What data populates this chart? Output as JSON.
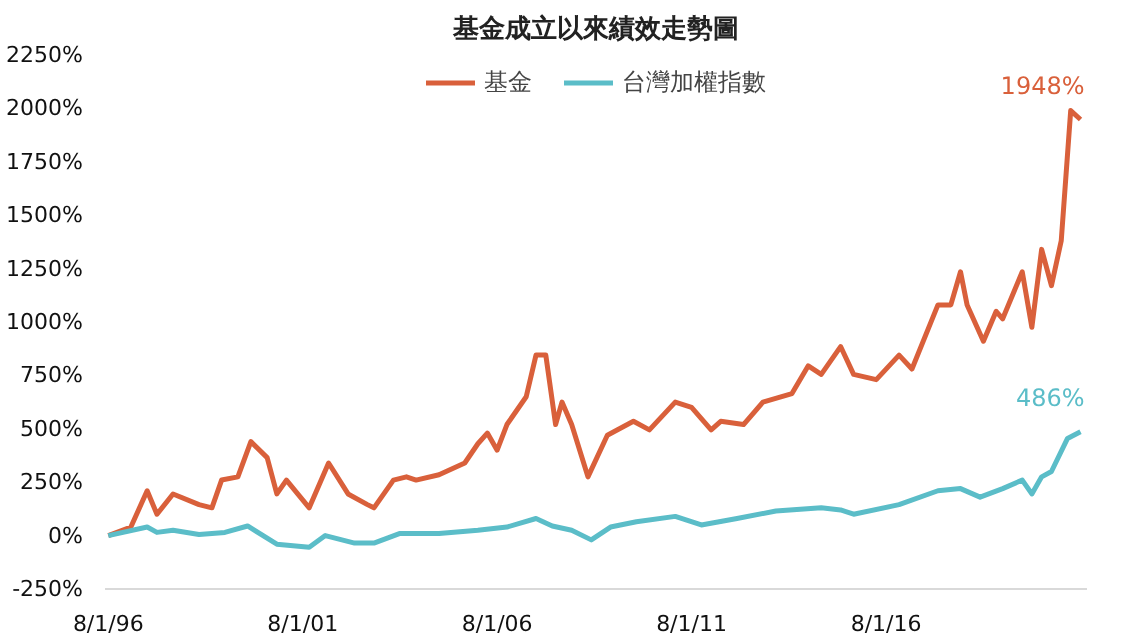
{
  "chart_data": {
    "type": "line",
    "title": "基金成立以來績效走勢圖",
    "legend": "top",
    "grid": false,
    "marker": "none",
    "line_style": "solid",
    "xlim": [
      "1996-07-01",
      "2021-10-01"
    ],
    "xticks": [
      {
        "value": "1996-08-01",
        "label": "8/1/96"
      },
      {
        "value": "2001-08-01",
        "label": "8/1/01"
      },
      {
        "value": "2006-08-01",
        "label": "8/1/06"
      },
      {
        "value": "2011-08-01",
        "label": "8/1/11"
      },
      {
        "value": "2016-08-01",
        "label": "8/1/16"
      }
    ],
    "ylim": [
      -250,
      2250
    ],
    "yticks": [
      {
        "value": -250,
        "label": "-250%"
      },
      {
        "value": 0,
        "label": "0%"
      },
      {
        "value": 250,
        "label": "250%"
      },
      {
        "value": 500,
        "label": "500%"
      },
      {
        "value": 750,
        "label": "750%"
      },
      {
        "value": 1000,
        "label": "1000%"
      },
      {
        "value": 1250,
        "label": "1250%"
      },
      {
        "value": 1500,
        "label": "1500%"
      },
      {
        "value": 1750,
        "label": "1750%"
      },
      {
        "value": 2000,
        "label": "2000%"
      },
      {
        "value": 2250,
        "label": "2250%"
      }
    ],
    "series": [
      {
        "name": "基金",
        "color": "#d9603b",
        "x": [
          "1996-08",
          "1997-03",
          "1997-08",
          "1997-11",
          "1998-04",
          "1998-12",
          "1999-04",
          "1999-07",
          "1999-12",
          "2000-04",
          "2000-09",
          "2000-12",
          "2001-03",
          "2001-10",
          "2002-04",
          "2002-10",
          "2003-04",
          "2003-06",
          "2003-12",
          "2004-04",
          "2004-07",
          "2005-02",
          "2005-10",
          "2006-02",
          "2006-05",
          "2006-08",
          "2006-11",
          "2007-05",
          "2007-08",
          "2007-11",
          "2008-02",
          "2008-04",
          "2008-07",
          "2008-12",
          "2009-06",
          "2010-02",
          "2010-07",
          "2011-03",
          "2011-08",
          "2012-02",
          "2012-05",
          "2012-12",
          "2013-06",
          "2014-03",
          "2014-08",
          "2014-12",
          "2015-06",
          "2015-10",
          "2016-05",
          "2016-12",
          "2017-04",
          "2017-12",
          "2018-04",
          "2018-07",
          "2018-09",
          "2019-02",
          "2019-06",
          "2019-08",
          "2020-02",
          "2020-05",
          "2020-08",
          "2020-11",
          "2021-02",
          "2021-05",
          "2021-08"
        ],
        "values": [
          0,
          40,
          210,
          100,
          195,
          145,
          130,
          260,
          275,
          440,
          365,
          195,
          260,
          130,
          340,
          195,
          145,
          130,
          260,
          275,
          260,
          285,
          340,
          430,
          480,
          400,
          520,
          650,
          845,
          845,
          520,
          625,
          520,
          275,
          470,
          535,
          495,
          625,
          600,
          495,
          535,
          520,
          625,
          665,
          795,
          755,
          885,
          755,
          730,
          845,
          780,
          1080,
          1080,
          1235,
          1080,
          910,
          1050,
          1015,
          1235,
          975,
          1340,
          1170,
          1380,
          1990,
          1948
        ]
      },
      {
        "name": "台灣加權指數",
        "color": "#5bbdc8",
        "x": [
          "1996-08",
          "1997-08",
          "1997-11",
          "1998-04",
          "1998-12",
          "1999-08",
          "2000-03",
          "2000-12",
          "2001-10",
          "2002-03",
          "2002-12",
          "2003-06",
          "2004-02",
          "2005-02",
          "2006-02",
          "2006-11",
          "2007-08",
          "2008-01",
          "2008-07",
          "2009-01",
          "2009-07",
          "2010-03",
          "2011-03",
          "2011-11",
          "2012-10",
          "2013-10",
          "2014-12",
          "2015-06",
          "2015-10",
          "2016-12",
          "2017-12",
          "2018-07",
          "2019-01",
          "2019-08",
          "2020-02",
          "2020-05",
          "2020-08",
          "2020-11",
          "2021-04",
          "2021-08"
        ],
        "values": [
          0,
          40,
          15,
          25,
          5,
          15,
          45,
          -40,
          -55,
          0,
          -35,
          -35,
          10,
          10,
          25,
          40,
          80,
          45,
          25,
          -20,
          40,
          65,
          90,
          50,
          80,
          115,
          130,
          120,
          100,
          145,
          210,
          220,
          180,
          220,
          260,
          195,
          275,
          300,
          455,
          486
        ]
      }
    ],
    "annotations": [
      {
        "text": "1948%",
        "x": "2021-08",
        "y": 1948
      },
      {
        "text": "486%",
        "x": "2021-08",
        "y": 486
      }
    ]
  }
}
